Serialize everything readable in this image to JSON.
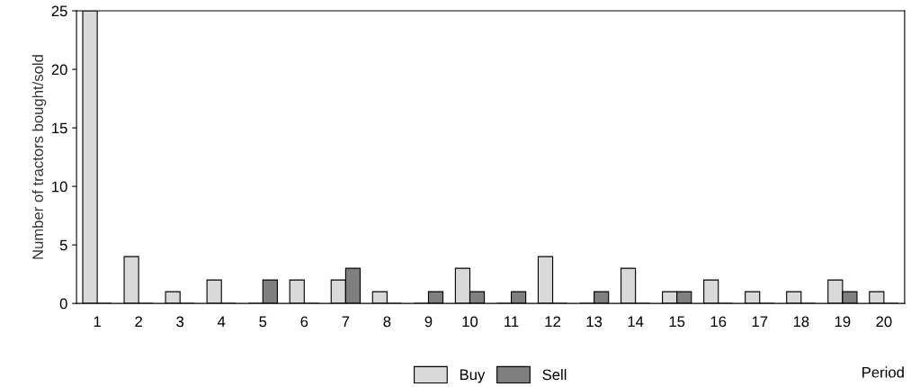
{
  "chart_data": {
    "type": "bar",
    "xlabel": "Period",
    "ylabel": "Number of tractors bought/sold",
    "categories": [
      "1",
      "2",
      "3",
      "4",
      "5",
      "6",
      "7",
      "8",
      "9",
      "10",
      "11",
      "12",
      "13",
      "14",
      "15",
      "16",
      "17",
      "18",
      "19",
      "20"
    ],
    "series": [
      {
        "name": "Buy",
        "color": "#d9d9d9",
        "values": [
          25,
          4,
          1,
          2,
          0,
          2,
          2,
          1,
          0,
          3,
          0,
          4,
          0,
          3,
          1,
          2,
          1,
          1,
          2,
          1
        ]
      },
      {
        "name": "Sell",
        "color": "#7f7f7f",
        "values": [
          0,
          0,
          0,
          0,
          2,
          0,
          3,
          0,
          1,
          1,
          1,
          0,
          1,
          0,
          1,
          0,
          0,
          0,
          1,
          0
        ]
      }
    ],
    "ylim": [
      0,
      25
    ],
    "yticks": [
      0,
      5,
      10,
      15,
      20,
      25
    ],
    "grid": false,
    "legend": "bottom"
  }
}
